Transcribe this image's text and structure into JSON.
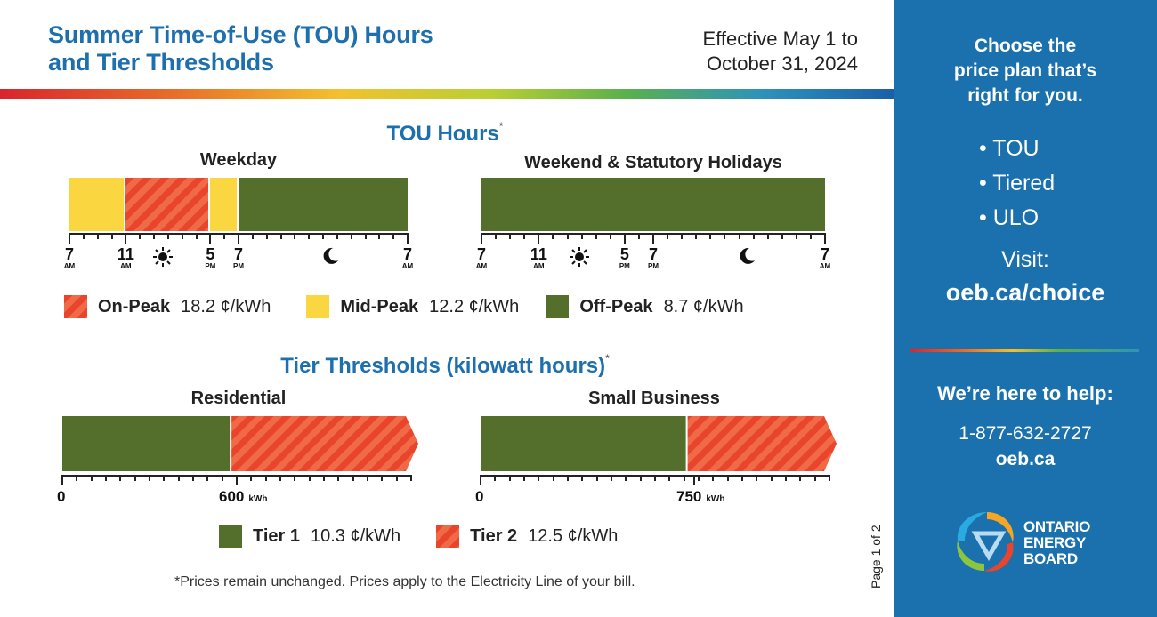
{
  "header": {
    "title_line1": "Summer Time-of-Use (TOU) Hours",
    "title_line2": "and Tier Thresholds",
    "effective_line1": "Effective May 1 to",
    "effective_line2": "October 31, 2024"
  },
  "tou": {
    "title": "TOU Hours",
    "asterisk": "*",
    "weekday": {
      "label": "Weekday",
      "segments": [
        {
          "from_hour": 7,
          "to_hour": 11,
          "period": "mid-peak"
        },
        {
          "from_hour": 11,
          "to_hour": 17,
          "period": "on-peak"
        },
        {
          "from_hour": 17,
          "to_hour": 19,
          "period": "mid-peak"
        },
        {
          "from_hour": 19,
          "to_hour": 31,
          "period": "off-peak"
        }
      ],
      "ticks": [
        {
          "num": "7",
          "ampm": "AM"
        },
        {
          "num": "11",
          "ampm": "AM"
        },
        {
          "num": "5",
          "ampm": "PM"
        },
        {
          "num": "7",
          "ampm": "PM"
        },
        {
          "num": "7",
          "ampm": "AM"
        }
      ]
    },
    "weekend": {
      "label": "Weekend & Statutory Holidays",
      "segments": [
        {
          "from_hour": 7,
          "to_hour": 31,
          "period": "off-peak"
        }
      ],
      "ticks": [
        {
          "num": "7",
          "ampm": "AM"
        },
        {
          "num": "11",
          "ampm": "AM"
        },
        {
          "num": "5",
          "ampm": "PM"
        },
        {
          "num": "7",
          "ampm": "PM"
        },
        {
          "num": "7",
          "ampm": "AM"
        }
      ]
    },
    "legend": [
      {
        "name": "On-Peak",
        "price": "18.2 ¢/kWh",
        "color": "#e8452c"
      },
      {
        "name": "Mid-Peak",
        "price": "12.2 ¢/kWh",
        "color": "#fad641"
      },
      {
        "name": "Off-Peak",
        "price": "8.7 ¢/kWh",
        "color": "#546f2b"
      }
    ],
    "icons": [
      "sun-icon",
      "moon-icon"
    ]
  },
  "tier": {
    "title": "Tier Thresholds (kilowatt hours)",
    "asterisk": "*",
    "residential": {
      "label": "Residential",
      "zero": "0",
      "threshold": "600",
      "unit": "kWh",
      "threshold_fraction": 0.49
    },
    "small_business": {
      "label": "Small Business",
      "zero": "0",
      "threshold": "750",
      "unit": "kWh",
      "threshold_fraction": 0.6
    },
    "legend": [
      {
        "name": "Tier 1",
        "price": "10.3 ¢/kWh",
        "color": "#546f2b"
      },
      {
        "name": "Tier 2",
        "price": "12.5 ¢/kWh",
        "color": "#e8452c"
      }
    ]
  },
  "footnote": "*Prices remain unchanged. Prices apply to the Electricity Line of your bill.",
  "page": "Page 1 of 2",
  "sidebar": {
    "heading_line1": "Choose the",
    "heading_line2": "price plan that’s",
    "heading_line3": "right for you.",
    "plans": [
      "• TOU",
      "• Tiered",
      "• ULO"
    ],
    "visit_label": "Visit:",
    "visit_url": "oeb.ca/choice",
    "help_heading": "We’re here to help:",
    "phone": "1-877-632-2727",
    "site": "oeb.ca",
    "logo_line1": "ONTARIO",
    "logo_line2": "ENERGY",
    "logo_line3": "BOARD"
  }
}
